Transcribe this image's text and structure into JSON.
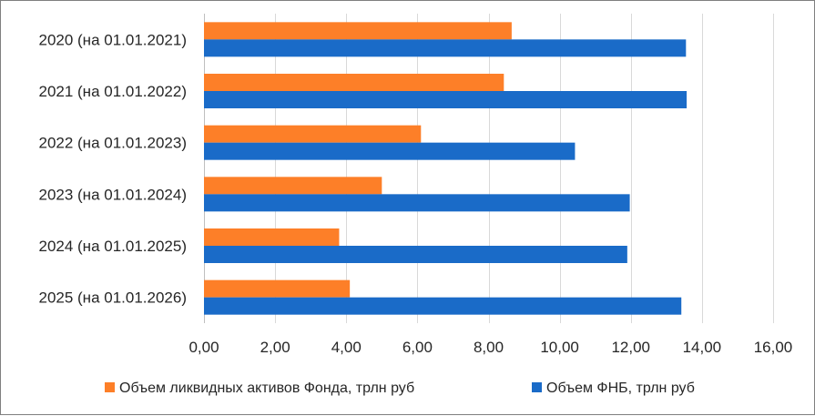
{
  "chart_data": {
    "type": "bar",
    "orientation": "horizontal",
    "title": "",
    "xlabel": "",
    "ylabel": "",
    "xlim": [
      0,
      16
    ],
    "x_ticks": [
      0,
      2,
      4,
      6,
      8,
      10,
      12,
      14,
      16
    ],
    "x_tick_labels": [
      "0,00",
      "2,00",
      "4,00",
      "6,00",
      "8,00",
      "10,00",
      "12,00",
      "14,00",
      "16,00"
    ],
    "grid": true,
    "legend_position": "bottom",
    "categories": [
      "2020 (на 01.01.2021)",
      "2021 (на 01.01.2022)",
      "2022 (на 01.01.2023)",
      "2023 (на 01.01.2024)",
      "2024 (на 01.01.2025)",
      "2025 (на 01.01.2026)"
    ],
    "series": [
      {
        "name": "Объем ликвидных активов Фонда, трлн  руб",
        "color": "#fd7f28",
        "values": [
          8.65,
          8.43,
          6.1,
          5.0,
          3.8,
          4.1
        ]
      },
      {
        "name": "Объем ФНБ, трлн  руб",
        "color": "#1a6bc8",
        "values": [
          13.55,
          13.57,
          10.43,
          11.97,
          11.9,
          13.42
        ]
      }
    ]
  }
}
